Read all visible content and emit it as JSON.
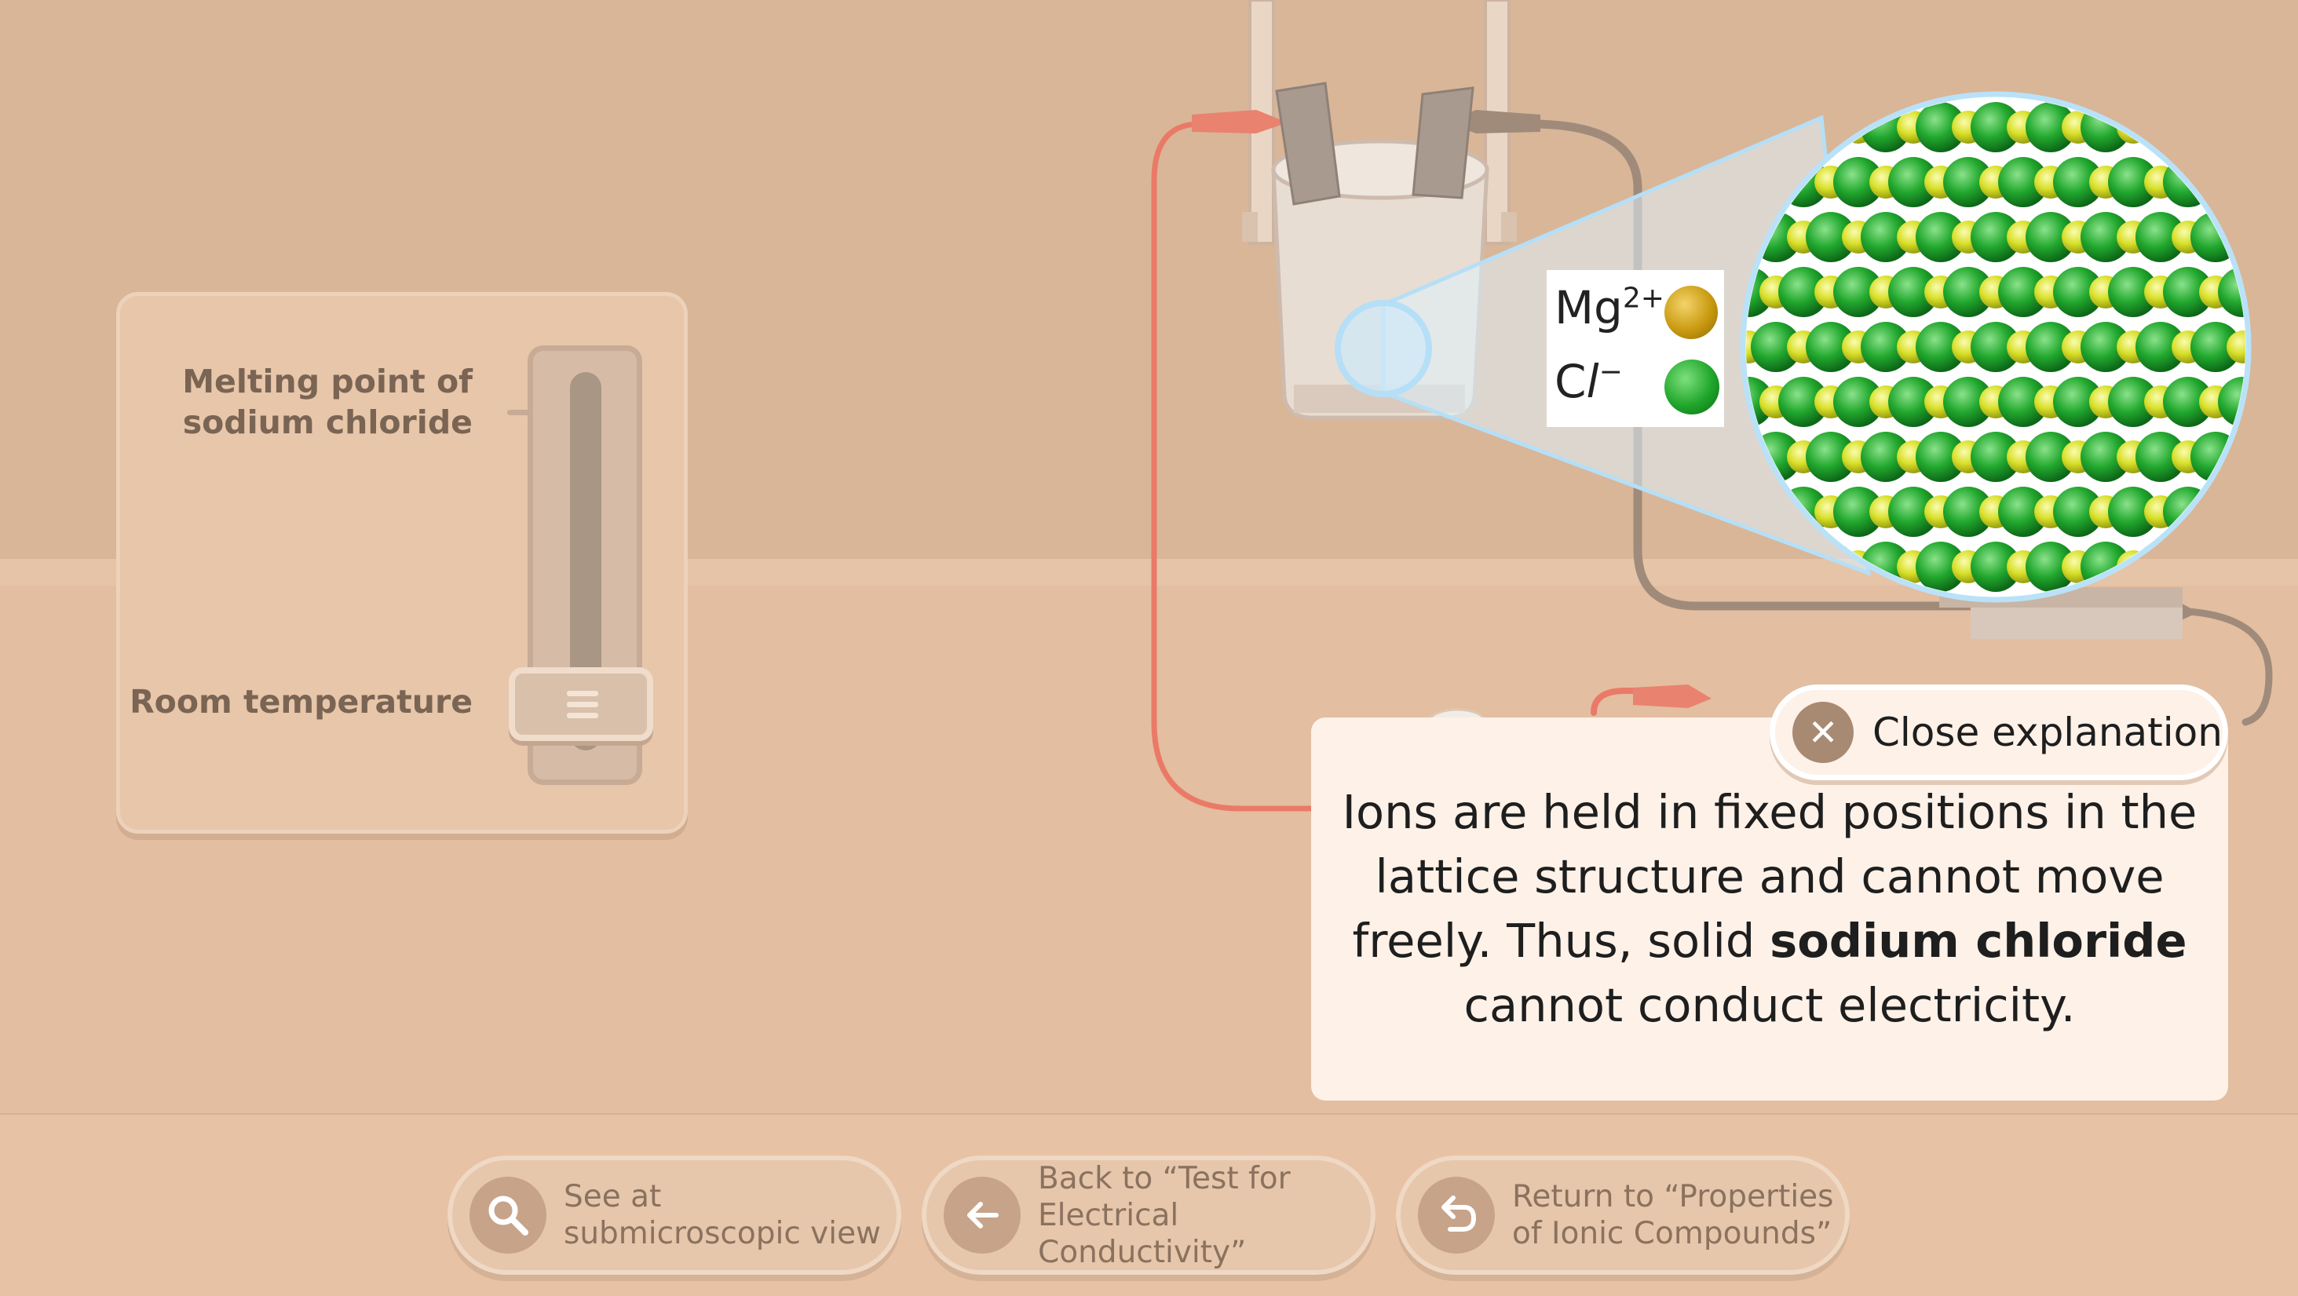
{
  "thermometer": {
    "label_melting": "Melting point of sodium chloride",
    "label_room": "Room temperature",
    "level": 0
  },
  "legend": {
    "mg_symbol": "Mg",
    "mg_charge": "2+",
    "cl_symbol_c": "C",
    "cl_symbol_l": "l",
    "cl_charge": "−"
  },
  "explanation": {
    "text_before": "Ions are held in fixed positions in the lattice structure and cannot move freely. Thus, solid ",
    "text_bold": "sodium chloride",
    "text_after": " cannot conduct electricity.",
    "close_label": "Close explanation"
  },
  "nav": {
    "submicroscopic_label": "See at submicroscopic view",
    "back_label": "Back to “Test for Electrical Conductivity”",
    "return_label": "Return to “Properties of Ionic Compounds”"
  },
  "colors": {
    "mg_ion": "#d4a514",
    "cl_ion": "#22a82e",
    "lattice_small": "#d8e02a",
    "wire_red": "#ea7a67",
    "wire_grey": "#a08b7b"
  }
}
